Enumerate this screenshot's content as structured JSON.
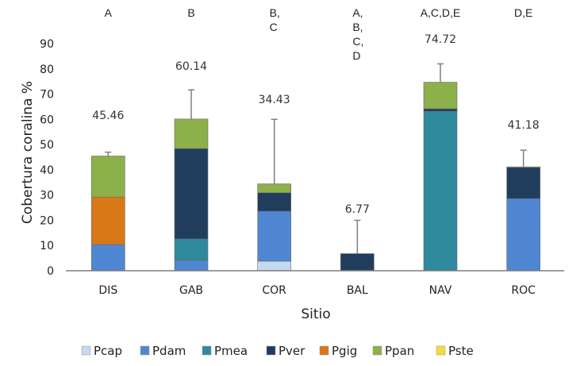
{
  "chart_data": {
    "type": "bar",
    "stacked": true,
    "title": "",
    "xlabel": "Sitio",
    "ylabel": "Cobertura coralina %",
    "ylim": [
      0,
      90
    ],
    "yticks": [
      0,
      10,
      20,
      30,
      40,
      50,
      60,
      70,
      80,
      90
    ],
    "grid": false,
    "legend_position": "bottom",
    "categories": [
      "DIS",
      "GAB",
      "COR",
      "BAL",
      "NAV",
      "ROC"
    ],
    "series": [
      {
        "name": "Pcap",
        "color": "#c5d9ee",
        "values": [
          0,
          0,
          3.8,
          0,
          0,
          0
        ]
      },
      {
        "name": "Pdam",
        "color": "#4f87d2",
        "values": [
          10.4,
          4.1,
          19.8,
          0,
          0,
          28.6
        ]
      },
      {
        "name": "Pmea",
        "color": "#2e8a9c",
        "values": [
          0,
          8.5,
          0,
          0,
          63.2,
          0
        ]
      },
      {
        "name": "Pver",
        "color": "#203d5e",
        "values": [
          0,
          35.8,
          7.3,
          6.77,
          1.0,
          12.4
        ]
      },
      {
        "name": "Pgig",
        "color": "#d97817",
        "values": [
          18.8,
          0,
          0,
          0,
          0,
          0
        ]
      },
      {
        "name": "Ppan",
        "color": "#8cb04a",
        "values": [
          16.26,
          11.74,
          3.53,
          0,
          10.52,
          0
        ]
      },
      {
        "name": "Pste",
        "color": "#f2dc3a",
        "values": [
          0,
          0,
          0,
          0,
          0,
          0.18
        ]
      }
    ],
    "totals": [
      "45.46",
      "60.14",
      "34.43",
      "6.77",
      "74.72",
      "41.18"
    ],
    "total_values": [
      45.46,
      60.14,
      34.43,
      6.77,
      74.72,
      41.18
    ],
    "error_upper": [
      47.0,
      71.7,
      60.0,
      20.0,
      82.0,
      47.8
    ],
    "group_letters": [
      [
        "A"
      ],
      [
        "B"
      ],
      [
        "B,",
        "C"
      ],
      [
        "A,",
        "B,",
        "C,",
        "D"
      ],
      [
        "A,C,D,E"
      ],
      [
        "D,E"
      ]
    ]
  }
}
